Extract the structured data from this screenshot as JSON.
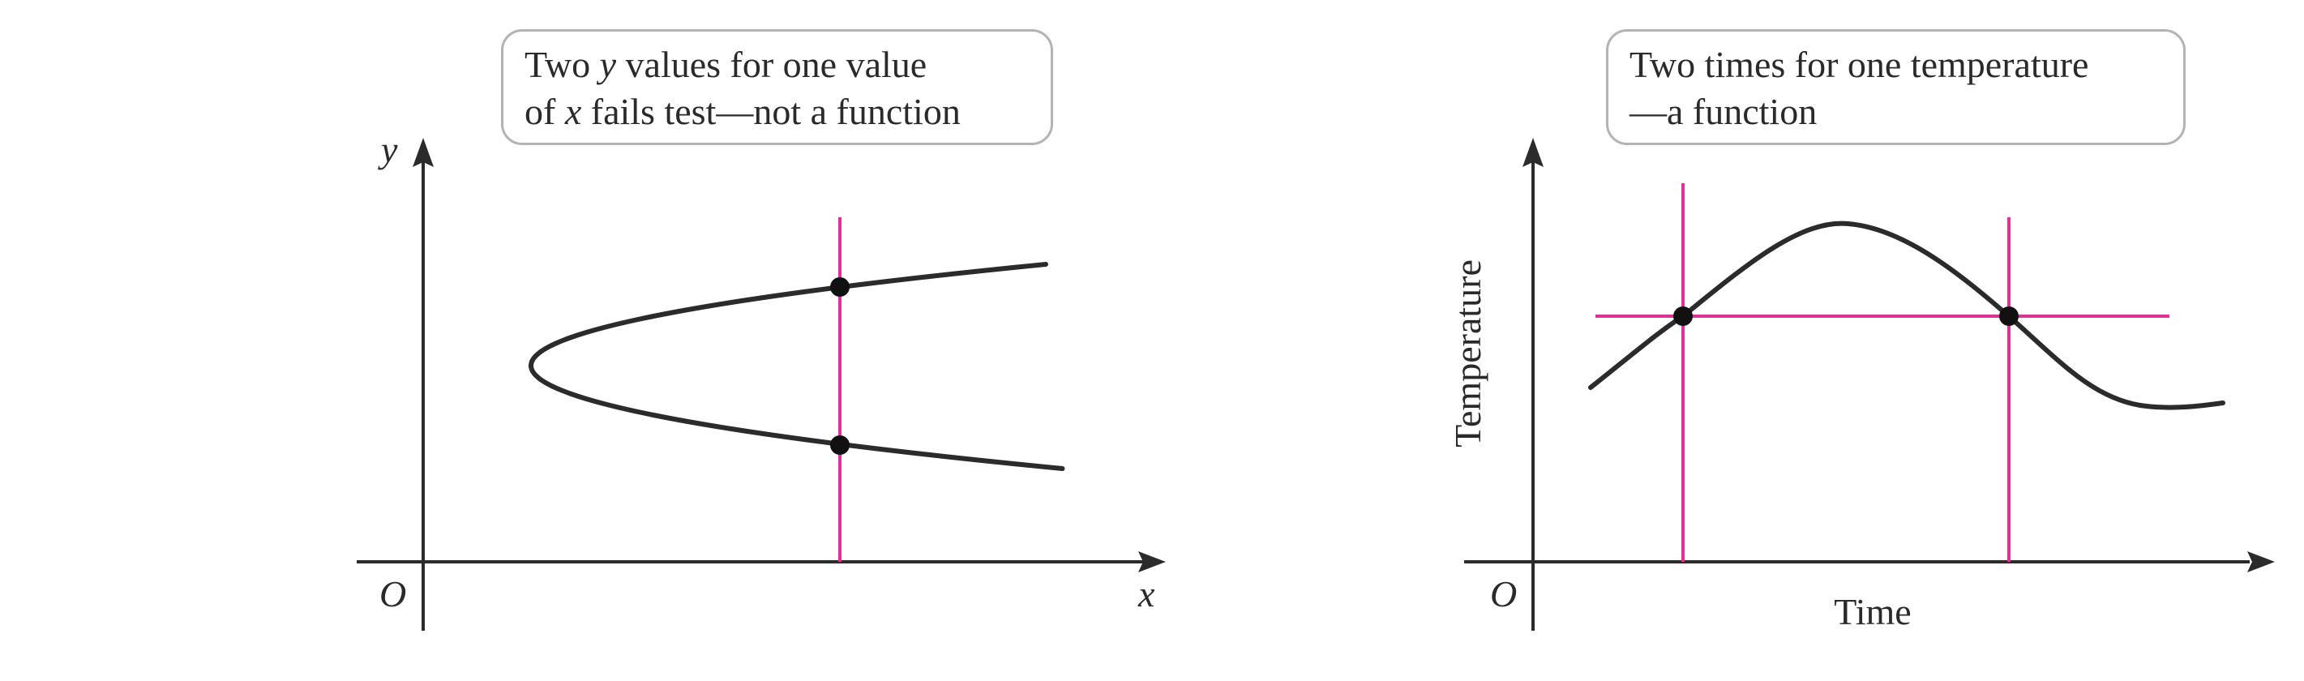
{
  "left_panel": {
    "callout": {
      "line1_parts": [
        "Two ",
        "y",
        " values for one value"
      ],
      "line2_parts": [
        "of ",
        "x",
        " fails test—not a function"
      ]
    },
    "axes": {
      "y_label": "y",
      "x_label": "x",
      "origin_label": "O"
    },
    "curve_name": "sideways-parabola",
    "vertical_test_line": true,
    "intersection_points": 2
  },
  "right_panel": {
    "callout": {
      "line1": "Two times for one temperature",
      "line2": "—a function"
    },
    "axes": {
      "y_label": "Temperature",
      "x_label": "Time",
      "origin_label": "O"
    },
    "curve_name": "temperature-wave",
    "horizontal_test_line": true,
    "vertical_test_lines": 2,
    "intersection_points": 2
  },
  "colors": {
    "axis": "#2b2b2b",
    "curve": "#2b2b2b",
    "test_line": "#e0309b",
    "point": "#111111",
    "callout_border": "#b3b3b3",
    "text": "#2a2a2a"
  }
}
